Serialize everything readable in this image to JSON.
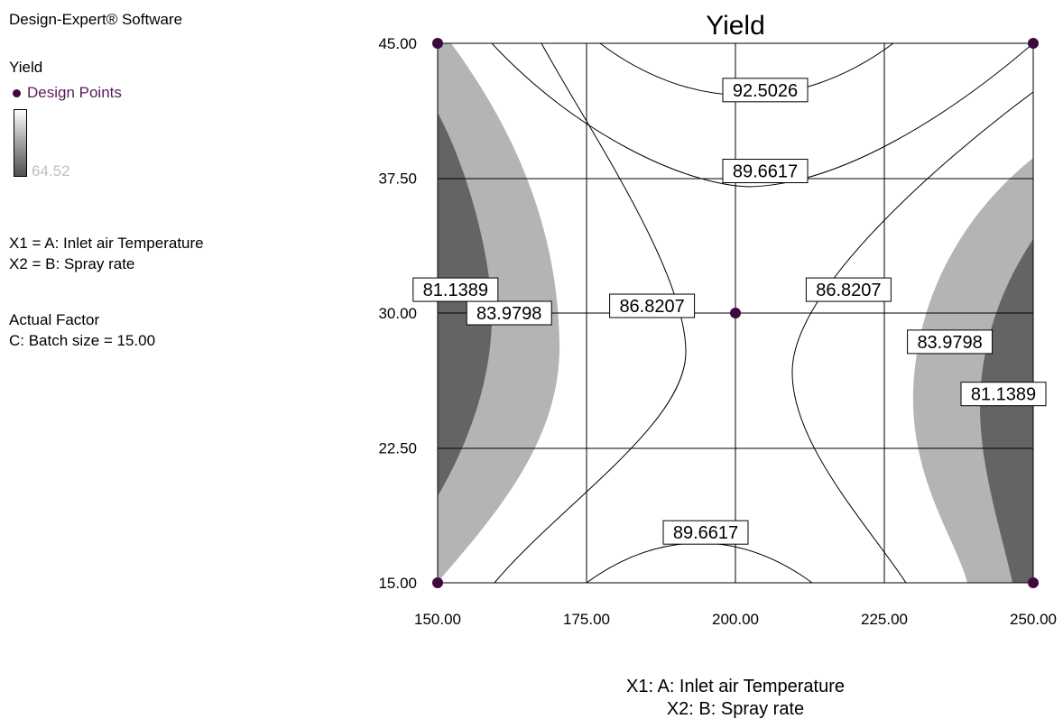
{
  "software_label": "Design-Expert® Software",
  "legend": {
    "response": "Yield",
    "design_points": "Design Points",
    "scale_low_value": "64.52",
    "factor_x1": "X1 = A: Inlet air Temperature",
    "factor_x2": "X2 = B: Spray rate",
    "actual_factor_heading": "Actual Factor",
    "actual_factor_value": "C: Batch size = 15.00"
  },
  "colors": {
    "design_point": "#3c0a3c",
    "design_points_text": "#5a1a5a",
    "fill_light": "#b4b4b4",
    "fill_dark": "#646464",
    "scale_text": "#c0c0c0"
  },
  "chart_data": {
    "type": "contour",
    "title": "Yield",
    "xlabel": "X1: A: Inlet air Temperature",
    "ylabel": "X2: B: Spray rate",
    "xlim": [
      150,
      250
    ],
    "ylim": [
      15,
      45
    ],
    "x_ticks": [
      "150.00",
      "175.00",
      "200.00",
      "225.00",
      "250.00"
    ],
    "y_ticks": [
      "15.00",
      "22.50",
      "30.00",
      "37.50",
      "45.00"
    ],
    "grid": true,
    "contour_labels": [
      {
        "text": "92.5026",
        "x": 205,
        "y": 42.4
      },
      {
        "text": "89.6617",
        "x": 205,
        "y": 37.9
      },
      {
        "text": "86.8207",
        "x": 186,
        "y": 30.4
      },
      {
        "text": "86.8207",
        "x": 219,
        "y": 31.3
      },
      {
        "text": "83.9798",
        "x": 162,
        "y": 30.0
      },
      {
        "text": "83.9798",
        "x": 236,
        "y": 28.4
      },
      {
        "text": "81.1389",
        "x": 153,
        "y": 31.3
      },
      {
        "text": "81.1389",
        "x": 245,
        "y": 25.5
      },
      {
        "text": "89.6617",
        "x": 195,
        "y": 17.8
      }
    ],
    "design_points": [
      [
        150,
        45
      ],
      [
        250,
        45
      ],
      [
        200,
        30
      ],
      [
        150,
        15
      ],
      [
        250,
        15
      ]
    ]
  }
}
